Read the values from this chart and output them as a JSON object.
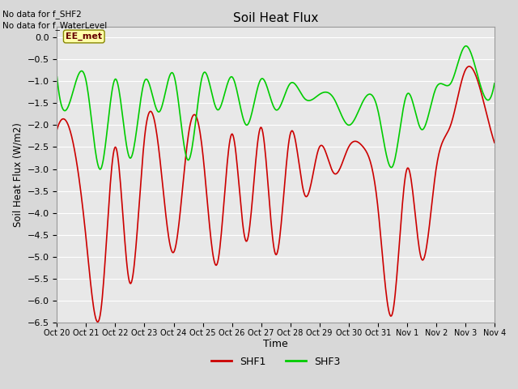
{
  "title": "Soil Heat Flux",
  "ylabel": "Soil Heat Flux (W/m2)",
  "xlabel": "Time",
  "ylim": [
    -6.5,
    0.25
  ],
  "yticks": [
    0.0,
    -0.5,
    -1.0,
    -1.5,
    -2.0,
    -2.5,
    -3.0,
    -3.5,
    -4.0,
    -4.5,
    -5.0,
    -5.5,
    -6.0,
    -6.5
  ],
  "xtick_labels": [
    "Oct 20",
    "Oct 21",
    "Oct 22",
    "Oct 23",
    "Oct 24",
    "Oct 25",
    "Oct 26",
    "Oct 27",
    "Oct 28",
    "Oct 29",
    "Oct 30",
    "Oct 31",
    "Nov 1",
    "Nov 2",
    "Nov 3",
    "Nov 4"
  ],
  "no_data_text": [
    "No data for f_SHF2",
    "No data for f_WaterLevel"
  ],
  "ee_met_label": "EE_met",
  "shf1_color": "#cc0000",
  "shf3_color": "#00cc00",
  "background_color": "#d8d8d8",
  "plot_bg_color": "#e8e8e8",
  "grid_color": "#ffffff",
  "shf1_key": [
    -2.1,
    -2.25,
    -4.6,
    -6.25,
    -2.5,
    -5.6,
    -2.3,
    -2.6,
    -4.9,
    -2.25,
    -2.65,
    -5.15,
    -2.2,
    -4.65,
    -2.05,
    -4.95,
    -2.2,
    -3.6,
    -2.5,
    -3.1,
    -2.5,
    -2.5,
    -3.85,
    -6.3,
    -3.0,
    -5.05,
    -3.0,
    -2.0,
    -0.75,
    -1.15,
    -2.4
  ],
  "shf3_key": [
    -0.9,
    -1.35,
    -1.0,
    -3.0,
    -0.95,
    -2.75,
    -1.0,
    -1.7,
    -0.85,
    -2.8,
    -0.85,
    -1.65,
    -0.9,
    -2.0,
    -0.95,
    -1.65,
    -1.05,
    -1.4,
    -1.3,
    -1.4,
    -2.0,
    -1.45,
    -1.65,
    -2.95,
    -1.3,
    -2.1,
    -1.15,
    -1.05,
    -0.2,
    -1.05,
    -1.05
  ]
}
